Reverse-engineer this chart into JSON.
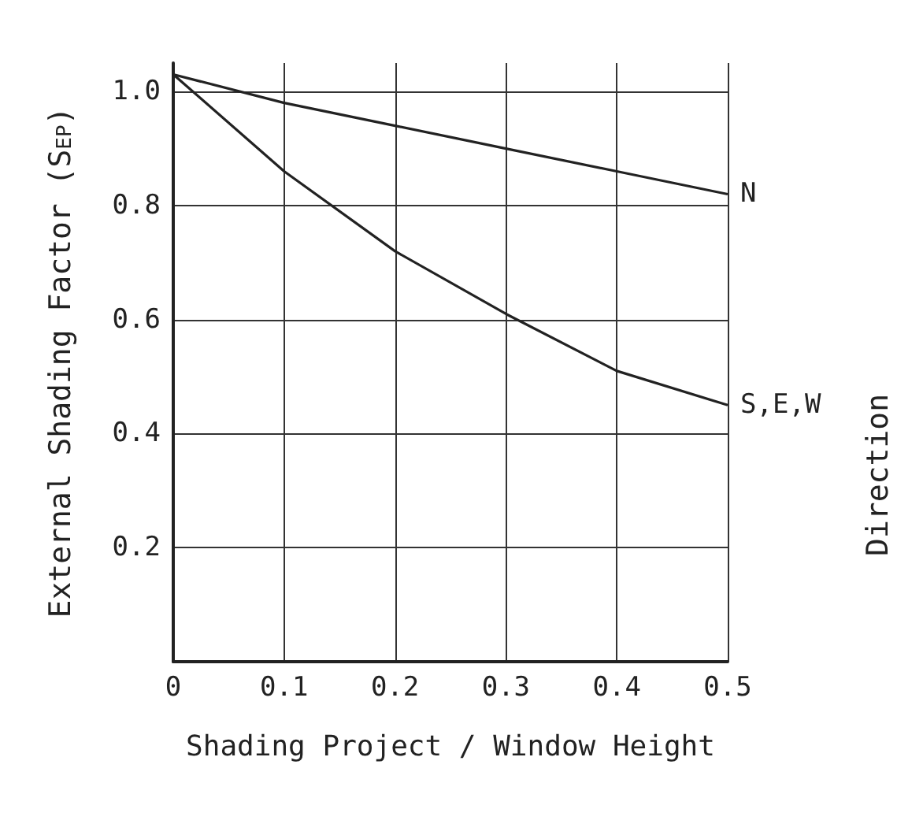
{
  "chart_data": {
    "type": "line",
    "xlabel": "Shading Project / Window Height",
    "ylabel": "External Shading Factor (S$_{EP}$)",
    "legend_title": "Direction",
    "x": [
      0,
      0.1,
      0.2,
      0.3,
      0.4,
      0.5
    ],
    "series": [
      {
        "name": "N",
        "color": "#222222",
        "values": [
          1.03,
          0.98,
          0.94,
          0.9,
          0.86,
          0.82
        ]
      },
      {
        "name": "S,E,W",
        "color": "#222222",
        "values": [
          1.03,
          0.86,
          0.72,
          0.61,
          0.51,
          0.45
        ]
      }
    ],
    "xlim": [
      0,
      0.5
    ],
    "xticks": [
      0,
      0.1,
      0.2,
      0.3,
      0.4,
      0.5
    ],
    "ylim": [
      0,
      1.05
    ],
    "yticks": [
      0.2,
      0.4,
      0.6,
      0.8,
      {
        "value": 1,
        "label": "1.0"
      }
    ],
    "grid": true,
    "legend": false,
    "marker": "none",
    "line_style": "solid"
  }
}
